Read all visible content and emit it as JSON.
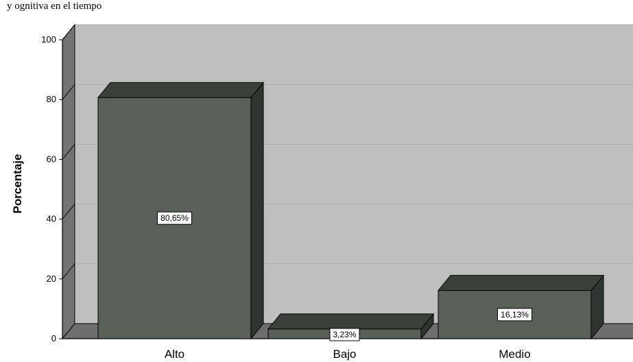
{
  "caption": "y ognitiva en el tiempo",
  "colors": {
    "wall": "#bfbfbf",
    "floor": "#6e6e6e",
    "side_wall": "#737373",
    "gridline": "#a9a9a9",
    "bar_front": "#586058",
    "bar_top": "#394139",
    "bar_side": "#2f362f",
    "label_box": "#ffffff"
  },
  "chart_data": {
    "type": "bar",
    "title": "",
    "xlabel": "",
    "ylabel": "Porcentaje",
    "ylim": [
      0,
      100
    ],
    "yticks": [
      0,
      20,
      40,
      60,
      80,
      100
    ],
    "grid": true,
    "three_d": true,
    "categories": [
      "Alto",
      "Bajo",
      "Medio"
    ],
    "values": [
      80.65,
      3.23,
      16.13
    ],
    "data_labels": [
      "80,65%",
      "3,23%",
      "16,13%"
    ]
  }
}
